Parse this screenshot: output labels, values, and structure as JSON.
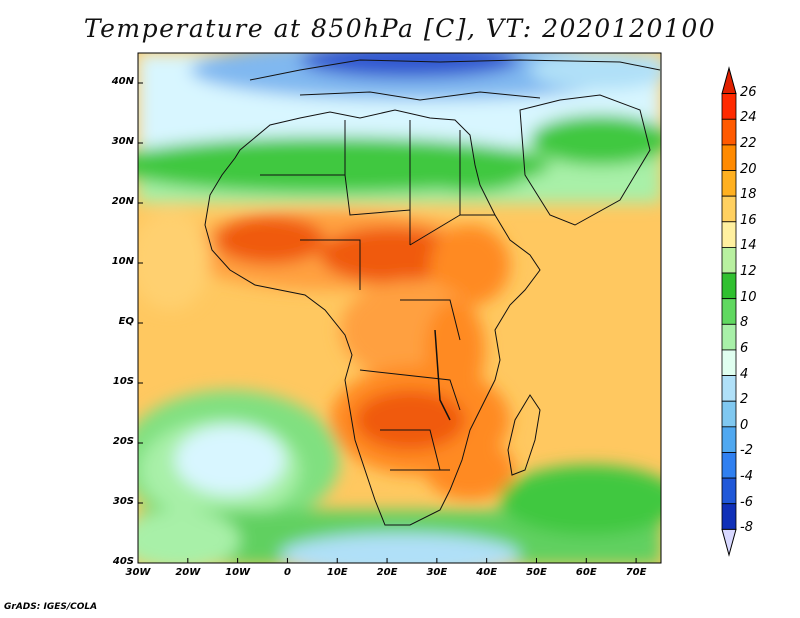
{
  "title": "Temperature at 850hPa [C], VT: 2020120100",
  "credit": "GrADS: IGES/COLA",
  "map": {
    "lat_labels": [
      "40N",
      "30N",
      "20N",
      "10N",
      "EQ",
      "10S",
      "20S",
      "30S",
      "40S"
    ],
    "lat_values": [
      40,
      30,
      20,
      10,
      0,
      -10,
      -20,
      -30,
      -40
    ],
    "lon_labels": [
      "30W",
      "20W",
      "10W",
      "0",
      "10E",
      "20E",
      "30E",
      "40E",
      "50E",
      "60E",
      "70E"
    ],
    "lon_values": [
      -30,
      -20,
      -10,
      0,
      10,
      20,
      30,
      40,
      50,
      60,
      70
    ]
  },
  "colorbar": {
    "levels": [
      "26",
      "24",
      "22",
      "20",
      "18",
      "16",
      "14",
      "12",
      "10",
      "8",
      "6",
      "4",
      "2",
      "0",
      "-2",
      "-4",
      "-6",
      "-8"
    ],
    "colors": [
      "#ff2a00",
      "#ff5a00",
      "#ff8a00",
      "#ffb020",
      "#ffd060",
      "#fff0a0",
      "#b8f0a0",
      "#30c030",
      "#60d860",
      "#a8f0a8",
      "#e0fff0",
      "#b0e0f8",
      "#80c8f0",
      "#50a8f0",
      "#3080f0",
      "#2058d8",
      "#1030b8",
      "#0a0a80"
    ]
  },
  "region_colors": {
    "ocean_warm": "#ffc860",
    "land_hot": "#ff8a20",
    "land_very_hot": "#f05a10",
    "cool_green": "#40c840",
    "light_green": "#a0f0a0",
    "pale_blue": "#d0f4ff",
    "blue": "#4090e8",
    "deep_blue": "#3050d0"
  }
}
